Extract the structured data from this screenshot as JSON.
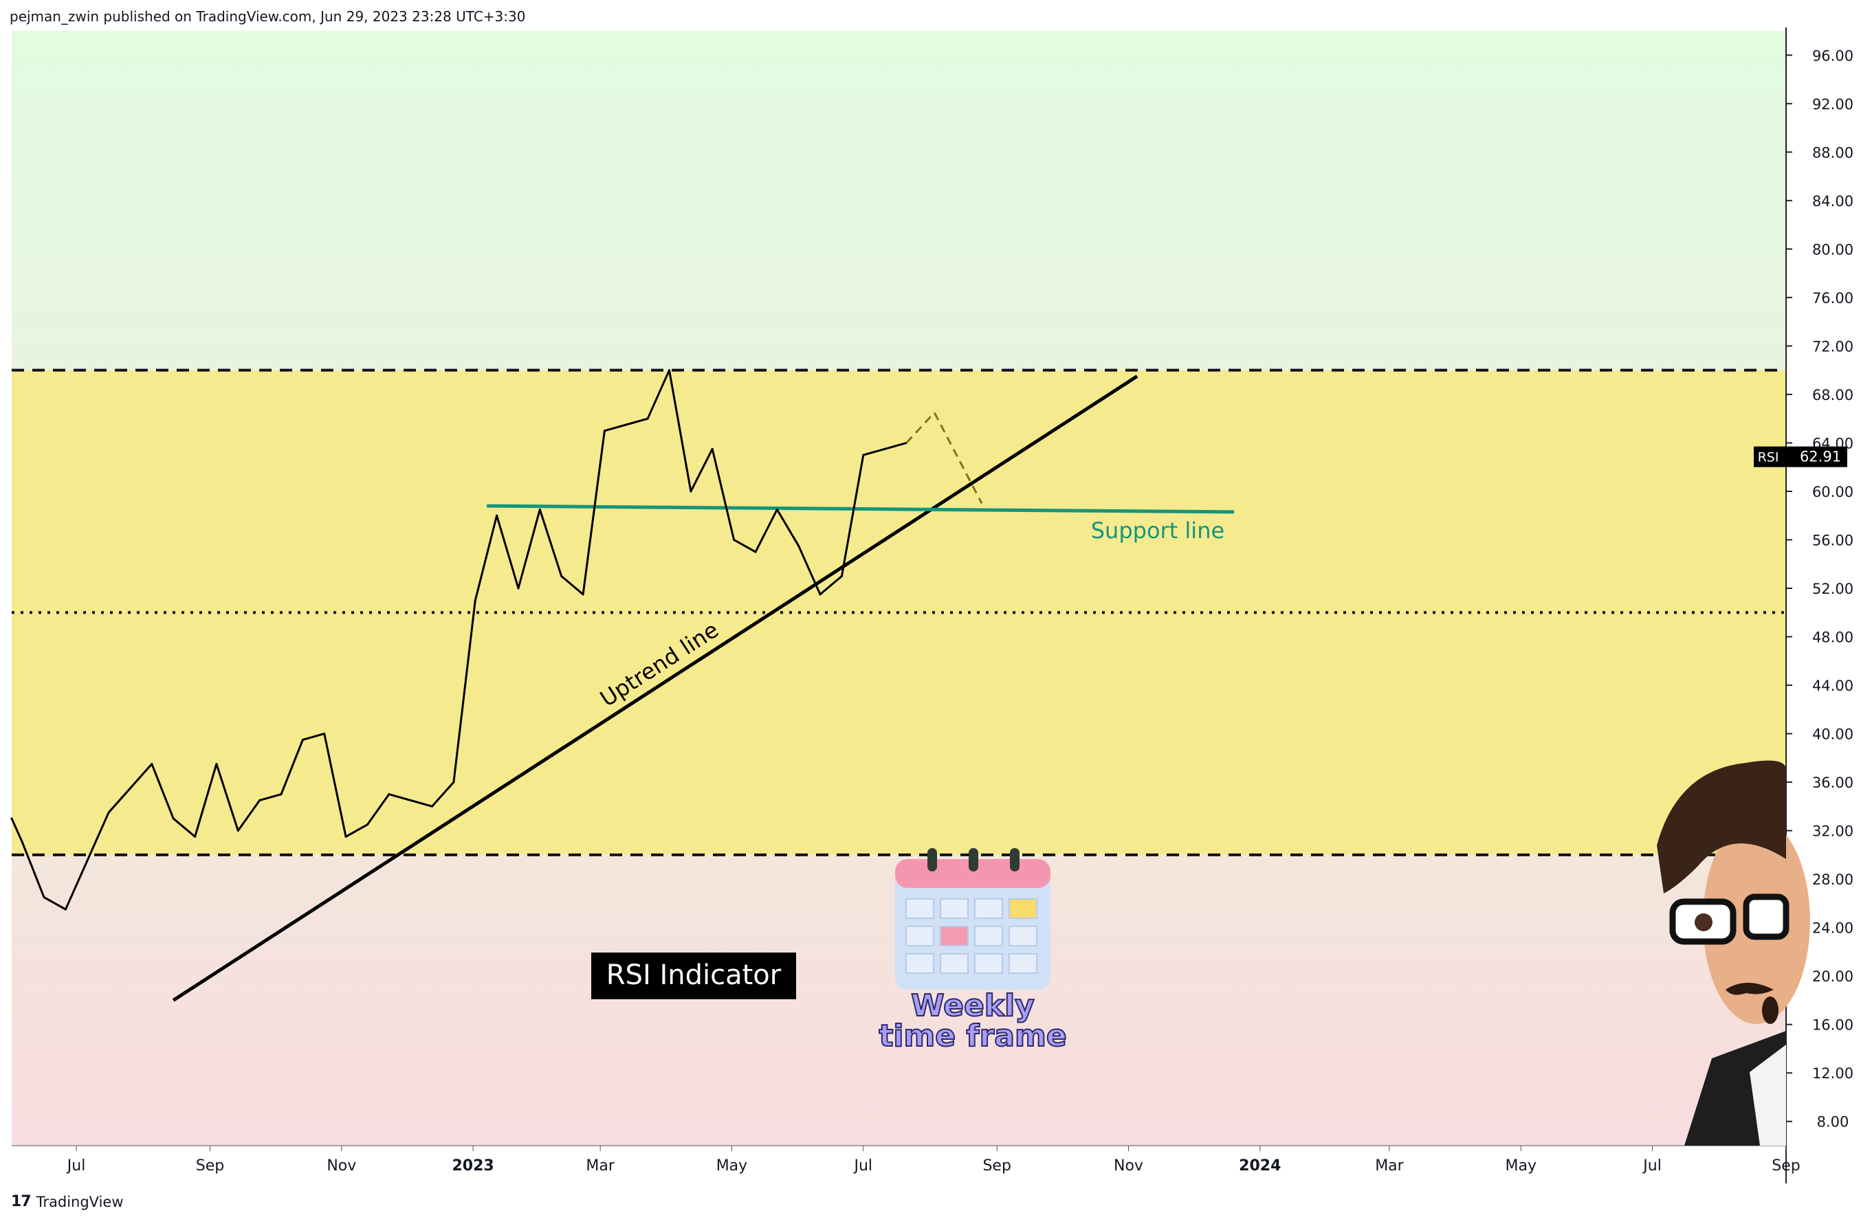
{
  "header": {
    "publisher": "pejman_zwin published on TradingView.com, Jun 29, 2023 23:28 UTC+3:30"
  },
  "footer": {
    "brand": "TradingView"
  },
  "annotations": {
    "title_box": "RSI Indicator",
    "support_label": "Support line",
    "uptrend_label": "Uptrend line",
    "timeframe_line1": "Weekly",
    "timeframe_line2": "time frame"
  },
  "current_value": {
    "label": "RSI",
    "value": "62.91"
  },
  "colors": {
    "overbought_zone": "#e3f8e1",
    "neutral_zone": "#f6ea8f",
    "oversold_zone": "#f6dede",
    "support_line": "#14967a",
    "rsi_line": "#000000",
    "projection_line": "#7a7a1a"
  },
  "chart_data": {
    "type": "line",
    "title": "",
    "ylim": [
      6,
      98
    ],
    "y_ticks": [
      "96.00",
      "92.00",
      "88.00",
      "84.00",
      "80.00",
      "76.00",
      "72.00",
      "68.00",
      "64.00",
      "60.00",
      "56.00",
      "52.00",
      "48.00",
      "44.00",
      "40.00",
      "36.00",
      "32.00",
      "28.00",
      "24.00",
      "20.00",
      "16.00",
      "12.00",
      "8.00"
    ],
    "x_ticks": [
      "Jul",
      "Sep",
      "Nov",
      "2023",
      "Mar",
      "May",
      "Jul",
      "Sep",
      "Nov",
      "2024",
      "Mar",
      "May",
      "Jul",
      "Sep"
    ],
    "x_tick_dates": [
      "2022-07-01",
      "2022-09-01",
      "2022-11-01",
      "2023-01-01",
      "2023-03-01",
      "2023-05-01",
      "2023-07-01",
      "2023-09-01",
      "2023-11-01",
      "2024-01-01",
      "2024-03-01",
      "2024-05-01",
      "2024-07-01",
      "2024-09-01"
    ],
    "x_range": [
      "2022-06-01",
      "2024-09-01"
    ],
    "bold_ticks": [
      "2023",
      "2024"
    ],
    "levels": [
      {
        "name": "overbought",
        "value": 70,
        "style": "dashed"
      },
      {
        "name": "midline",
        "value": 50,
        "style": "dotted"
      },
      {
        "name": "oversold",
        "value": 30,
        "style": "dashed"
      }
    ],
    "series": [
      {
        "x": [
          "2022-06-01",
          "2022-06-06",
          "2022-06-16",
          "2022-06-26",
          "2022-07-06",
          "2022-07-16",
          "2022-07-26",
          "2022-08-05",
          "2022-08-15",
          "2022-08-25",
          "2022-09-04",
          "2022-09-14",
          "2022-09-24",
          "2022-10-04",
          "2022-10-14",
          "2022-10-24",
          "2022-11-03",
          "2022-11-13",
          "2022-11-23",
          "2022-12-03",
          "2022-12-13",
          "2022-12-23",
          "2023-01-02",
          "2023-01-12",
          "2023-01-22",
          "2023-02-01",
          "2023-02-11",
          "2023-02-21",
          "2023-03-03",
          "2023-03-13",
          "2023-03-23",
          "2023-04-02",
          "2023-04-12",
          "2023-04-22",
          "2023-05-02",
          "2023-05-12",
          "2023-05-22",
          "2023-06-01",
          "2023-06-11",
          "2023-06-21",
          "2023-07-01",
          "2023-07-11",
          "2023-07-21"
        ],
        "values": [
          33.0,
          31.0,
          26.5,
          25.5,
          29.5,
          33.5,
          35.5,
          37.5,
          33.0,
          31.5,
          37.5,
          32.0,
          34.5,
          35.0,
          39.5,
          40.0,
          31.5,
          32.5,
          35.0,
          34.5,
          34.0,
          36.0,
          51.0,
          58.0,
          52.0,
          58.5,
          53.0,
          51.5,
          65.0,
          65.5,
          66.0,
          70.0,
          60.0,
          63.5,
          56.0,
          55.0,
          58.5,
          55.5,
          51.5,
          53.0,
          63.0,
          63.5,
          64.0
        ]
      }
    ],
    "projection": {
      "x": [
        "2023-07-21",
        "2023-08-03",
        "2023-08-25"
      ],
      "values": [
        64.0,
        66.5,
        59.0
      ],
      "style": "dashed"
    },
    "support_line": {
      "x": [
        "2023-01-01",
        "2023-12-20"
      ],
      "values": [
        58.8,
        58.3
      ]
    },
    "uptrend_line": {
      "x": [
        "2022-08-15",
        "2023-11-05"
      ],
      "values": [
        18.0,
        69.5
      ]
    }
  }
}
